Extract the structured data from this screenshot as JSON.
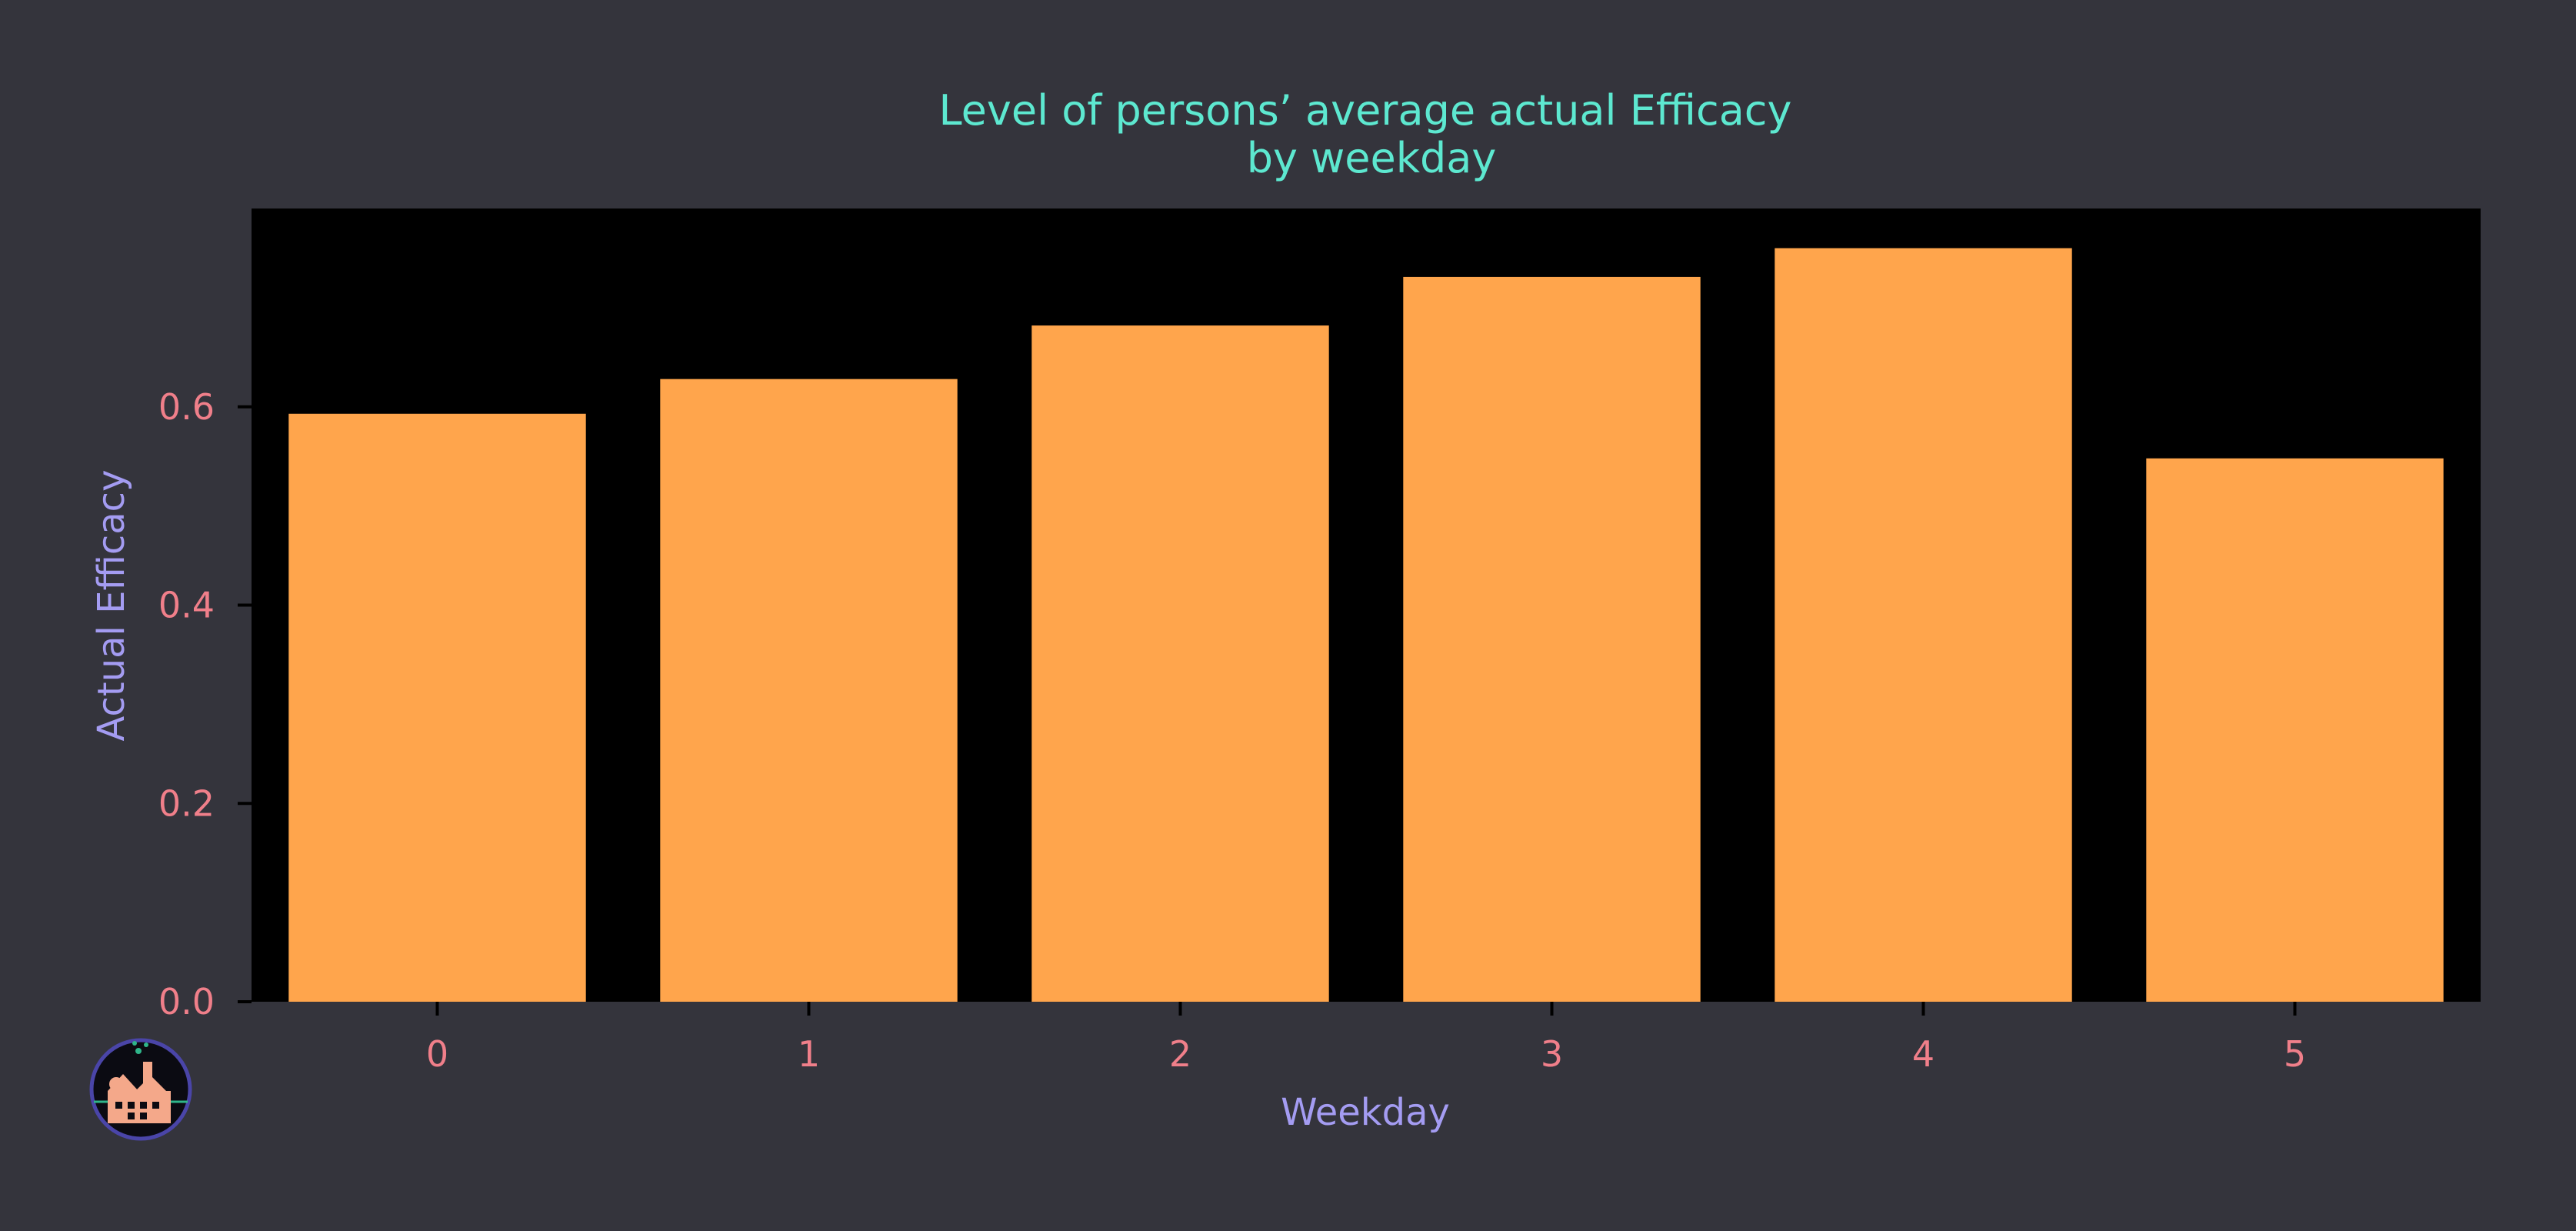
{
  "chart_data": {
    "type": "bar",
    "title": "Level of persons’ average actual Efficacy",
    "subtitle": "by weekday",
    "xlabel": "Weekday",
    "ylabel": "Actual Efficacy",
    "categories": [
      "0",
      "1",
      "2",
      "3",
      "4",
      "5"
    ],
    "values": [
      0.593,
      0.628,
      0.682,
      0.731,
      0.76,
      0.548
    ],
    "ylim": [
      0,
      0.8
    ],
    "yticks": [
      "0.0",
      "0.2",
      "0.4",
      "0.6"
    ],
    "grid": false,
    "bar_color": "#ffa54c",
    "plot_background": "#000000",
    "page_background": "#34343c"
  },
  "logo": {
    "icon": "factory-logo-icon"
  }
}
